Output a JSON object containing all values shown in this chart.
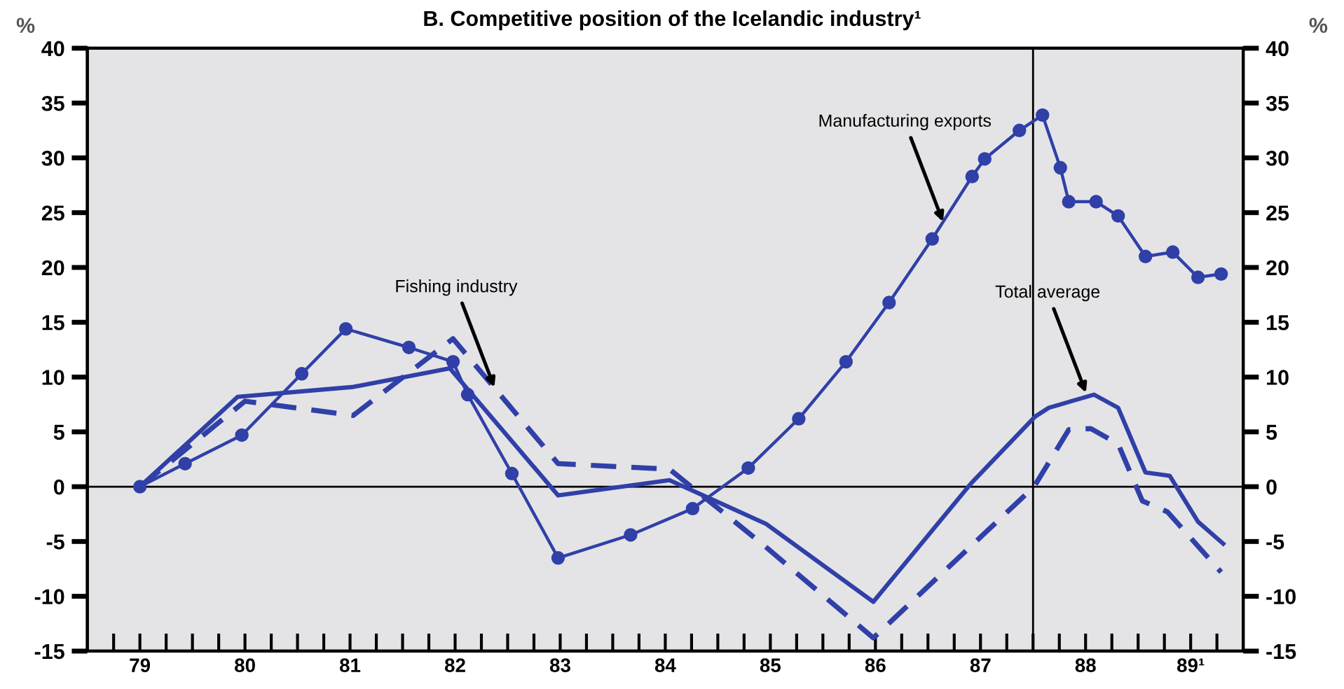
{
  "chart_data": {
    "type": "line",
    "title": "B. Competitive position of the Icelandic industry¹",
    "ylabel": "%",
    "y2label": "%",
    "series": [
      {
        "color": "#3040a8",
        "marker": "circle",
        "line_style": "solid",
        "x": [
          79.0,
          79.43,
          79.97,
          80.54,
          80.96,
          81.56,
          81.98,
          82.12,
          82.54,
          82.98,
          83.67,
          84.26,
          84.79,
          85.27,
          85.72,
          86.13,
          86.54,
          86.92,
          87.04,
          87.37,
          87.59,
          87.76,
          87.84,
          88.1,
          88.31,
          88.57,
          88.83,
          89.07,
          89.29
        ],
        "values": [
          0,
          2.1,
          4.7,
          10.3,
          14.4,
          12.7,
          11.4,
          8.4,
          1.2,
          -6.5,
          -4.4,
          -2.0,
          1.7,
          6.2,
          11.4,
          16.8,
          22.6,
          28.3,
          29.9,
          32.5,
          33.9,
          29.1,
          26.0,
          26.0,
          24.7,
          21.0,
          21.4,
          19.1,
          19.4
        ]
      },
      {
        "color": "#3040a8",
        "marker": "none",
        "line_style": "solid",
        "x": [
          79.0,
          79.93,
          81.03,
          81.95,
          82.98,
          84.04,
          84.96,
          85.98,
          86.91,
          87.52,
          87.65,
          88.08,
          88.31,
          88.57,
          88.8,
          89.07,
          89.31
        ],
        "values": [
          0,
          8.2,
          9.1,
          10.8,
          -0.8,
          0.6,
          -3.4,
          -10.5,
          0.3,
          6.4,
          7.2,
          8.4,
          7.2,
          1.3,
          1.0,
          -3.2,
          -5.2
        ]
      },
      {
        "color": "#3040a8",
        "marker": "none",
        "line_style": "dashed",
        "x": [
          79.0,
          80.0,
          81.03,
          81.98,
          82.98,
          84.04,
          84.92,
          85.98,
          87.51,
          87.84,
          88.05,
          88.31,
          88.54,
          88.78,
          89.29
        ],
        "values": [
          0,
          7.8,
          6.5,
          13.5,
          2.1,
          1.6,
          -5.2,
          -13.8,
          0,
          5.2,
          5.3,
          3.9,
          -1.3,
          -2.3,
          -7.8
        ]
      }
    ],
    "xlim": [
      78.5,
      89.5
    ],
    "xticks": [
      {
        "value": 78.75,
        "label": null
      },
      79,
      {
        "value": 79.25,
        "label": null
      },
      {
        "value": 79.5,
        "label": null
      },
      {
        "value": 79.75,
        "label": null
      },
      80,
      {
        "value": 80.25,
        "label": null
      },
      {
        "value": 80.5,
        "label": null
      },
      {
        "value": 80.75,
        "label": null
      },
      81,
      {
        "value": 81.25,
        "label": null
      },
      {
        "value": 81.5,
        "label": null
      },
      {
        "value": 81.75,
        "label": null
      },
      82,
      {
        "value": 82.25,
        "label": null
      },
      {
        "value": 82.5,
        "label": null
      },
      {
        "value": 82.75,
        "label": null
      },
      83,
      {
        "value": 83.25,
        "label": null
      },
      {
        "value": 83.5,
        "label": null
      },
      {
        "value": 83.75,
        "label": null
      },
      84,
      {
        "value": 84.25,
        "label": null
      },
      {
        "value": 84.5,
        "label": null
      },
      {
        "value": 84.75,
        "label": null
      },
      85,
      {
        "value": 85.25,
        "label": null
      },
      {
        "value": 85.5,
        "label": null
      },
      {
        "value": 85.75,
        "label": null
      },
      86,
      {
        "value": 86.25,
        "label": null
      },
      {
        "value": 86.5,
        "label": null
      },
      {
        "value": 86.75,
        "label": null
      },
      87,
      {
        "value": 87.25,
        "label": null
      },
      {
        "value": 87.5,
        "label": null
      },
      {
        "value": 87.75,
        "label": null
      },
      88,
      {
        "value": 88.25,
        "label": null
      },
      {
        "value": 88.5,
        "label": null
      },
      {
        "value": 88.75,
        "label": null
      },
      {
        "value": 89,
        "label": "89¹"
      },
      {
        "value": 89.25,
        "label": null
      }
    ],
    "ylim": [
      -15,
      40
    ],
    "yticks": [
      -15,
      -10,
      -5,
      0,
      5,
      10,
      15,
      20,
      25,
      30,
      35,
      40
    ],
    "y2lim": [
      -15,
      40
    ],
    "y2ticks": [
      -15,
      -10,
      -5,
      0,
      5,
      10,
      15,
      20,
      25,
      30,
      35,
      40
    ],
    "ref_lines": [
      {
        "axis": "y",
        "value": 0,
        "label": null,
        "color": "#000000"
      },
      {
        "axis": "x",
        "value": 87.5,
        "label": null,
        "color": "#000000"
      }
    ],
    "annotations": [
      {
        "text": "Manufacturing exports",
        "x": 86.65,
        "y": 24
      },
      {
        "text": "Fishing industry",
        "x": 82.38,
        "y": 8.9
      },
      {
        "text": "Total average",
        "x": 88.01,
        "y": 8.4
      }
    ],
    "grid": false,
    "legend": false
  }
}
